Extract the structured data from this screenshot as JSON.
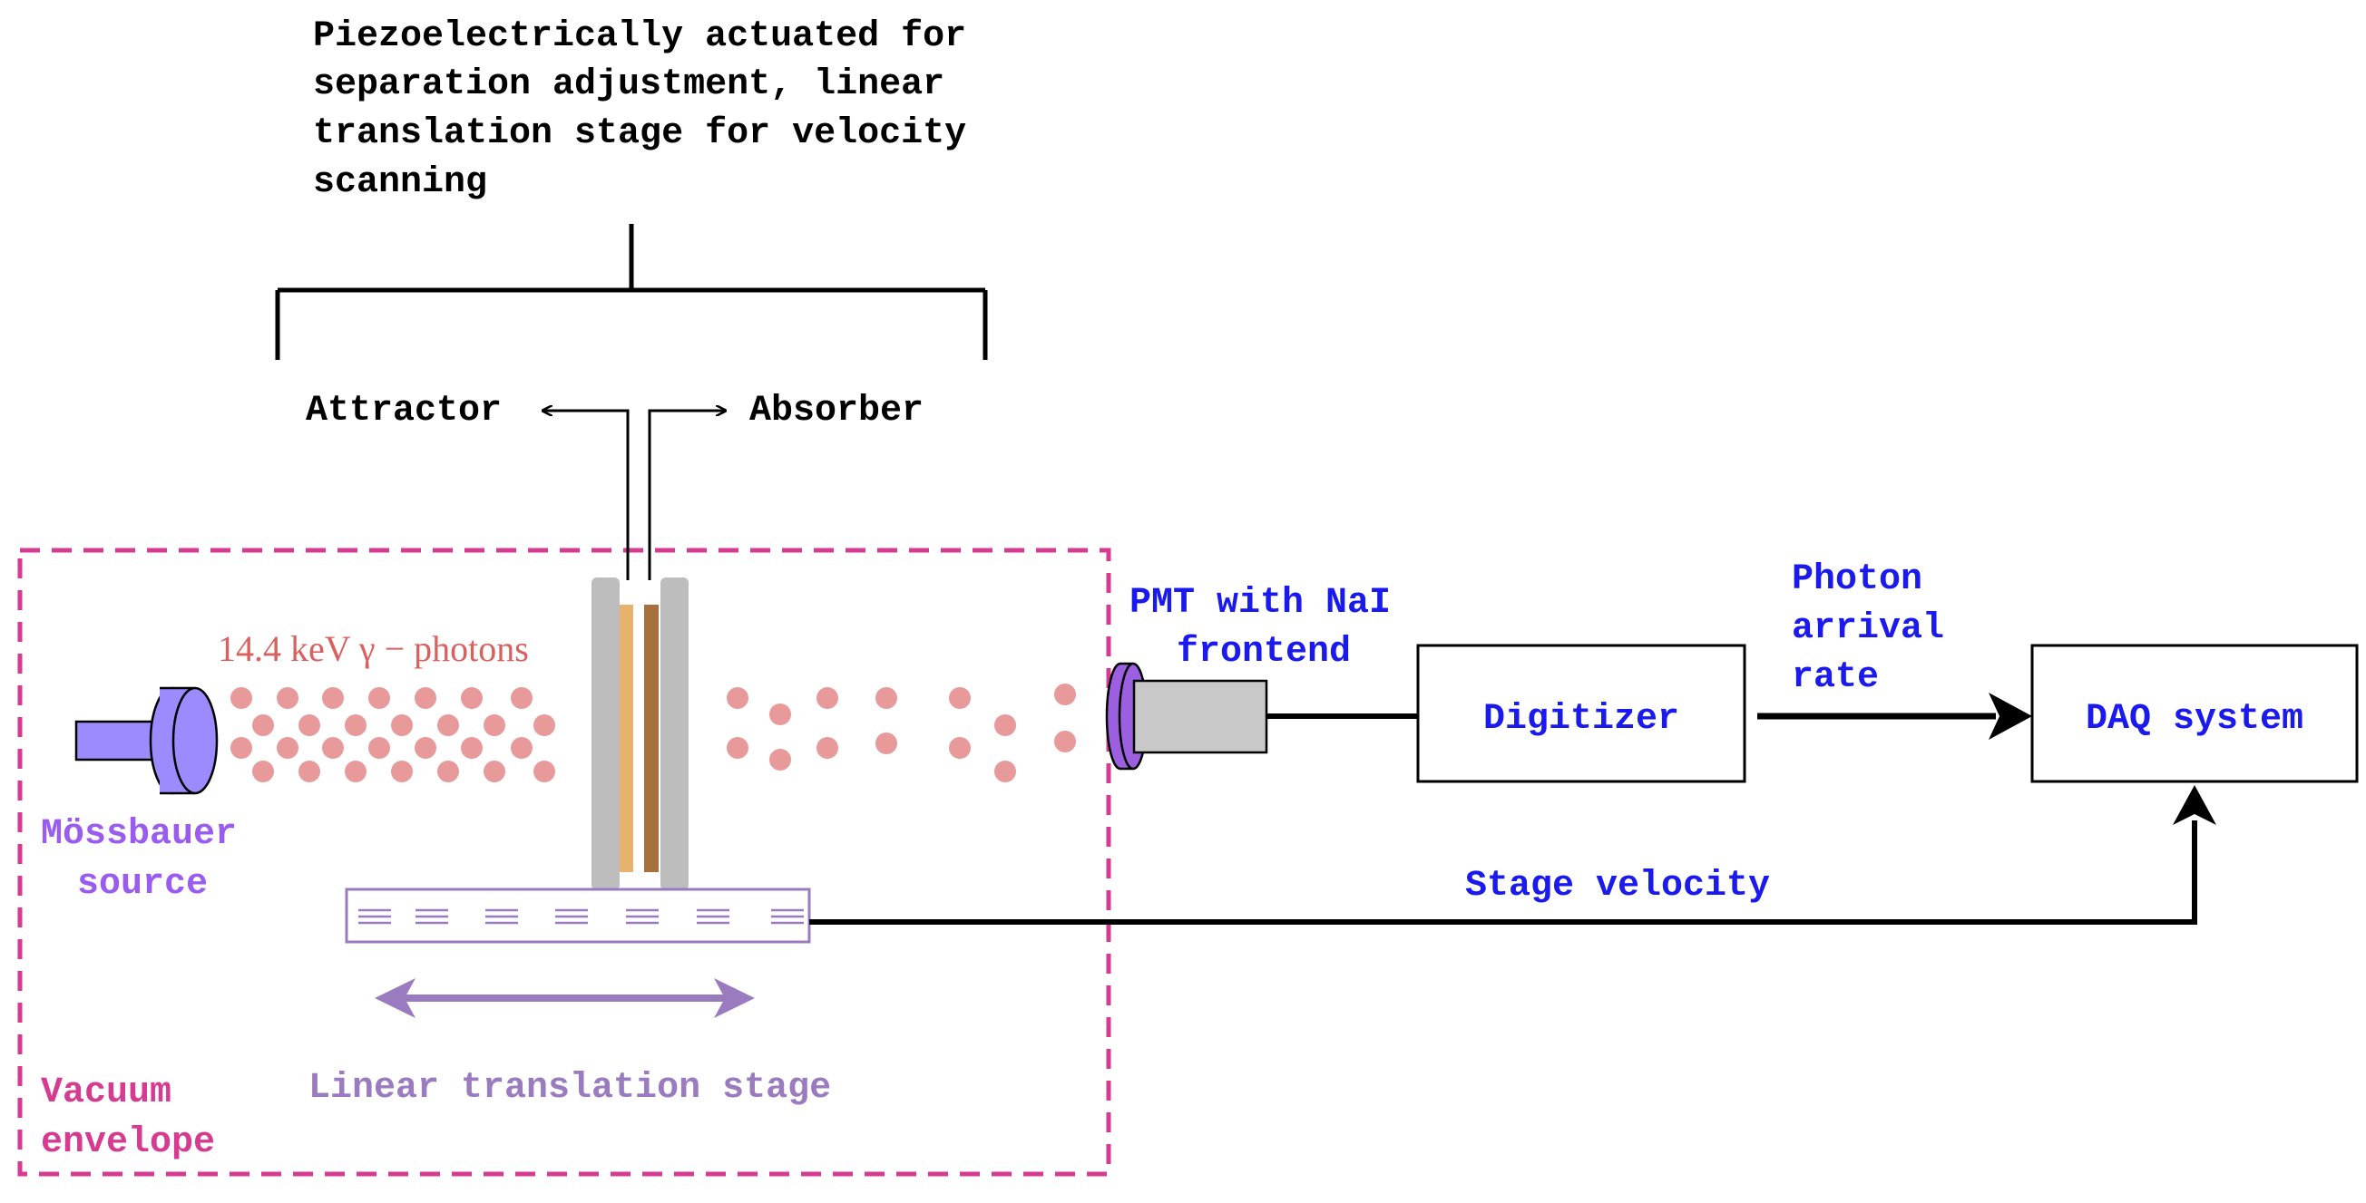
{
  "labels": {
    "top_caption": [
      "Piezoelectrically actuated for",
      "separation adjustment, linear",
      "translation stage for velocity",
      "scanning"
    ],
    "attractor": "Attractor",
    "absorber": "Absorber",
    "photons": "14.4 keV γ − photons",
    "source": [
      "Mössbauer",
      "source"
    ],
    "pmt": [
      "PMT with NaI",
      "frontend"
    ],
    "digitizer": "Digitizer",
    "photon_rate": [
      "Photon",
      "arrival",
      "rate"
    ],
    "daq": "DAQ system",
    "stage_velocity": "Stage velocity",
    "linear_stage": "Linear translation stage",
    "vacuum": [
      "Vacuum",
      "envelope"
    ]
  },
  "colors": {
    "black": "#000000",
    "blue_text": "#1a1aee",
    "source_purple": "#9b8bff",
    "source_text": "#9a5cf0",
    "photon_red": "#e8999a",
    "photon_text": "#d9605f",
    "plate_gray": "#bdbdbd",
    "attractor_orange": "#e6b26e",
    "absorber_brown": "#a8703c",
    "pmt_window": "#9b5fe0",
    "pmt_body": "#c8c8c8",
    "stage_purple": "#9b7bbf",
    "vacuum_pink": "#d63b91"
  }
}
